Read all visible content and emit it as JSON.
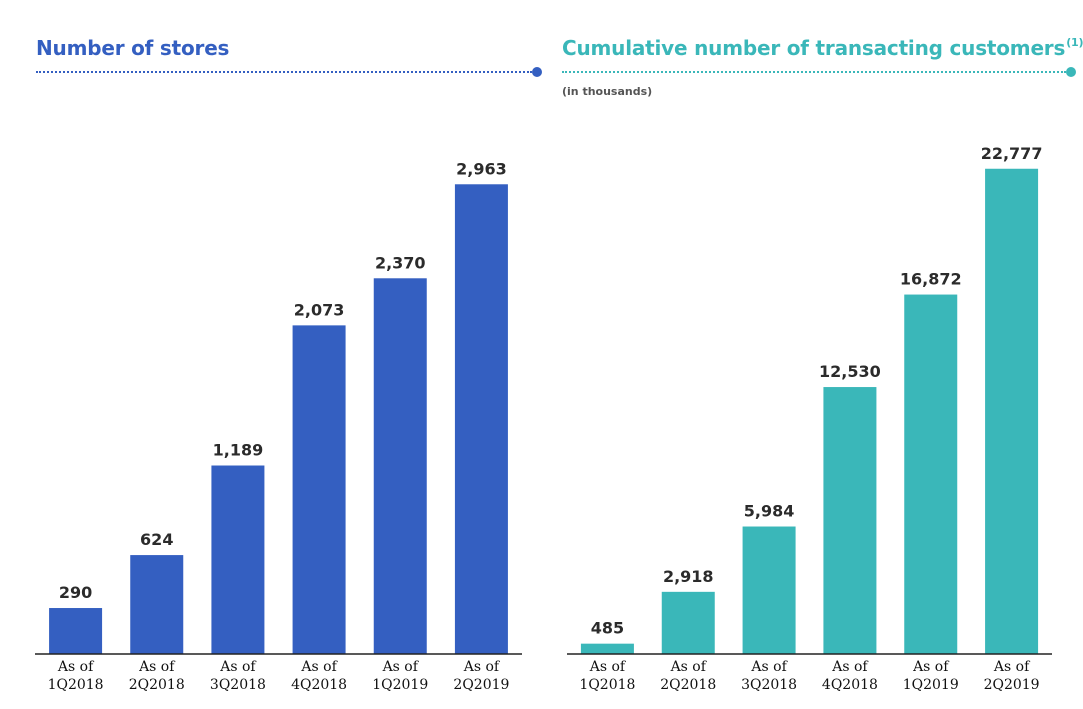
{
  "colors": {
    "stores_bar": "#345fc1",
    "customers_bar": "#3ab7b9",
    "axis": "#222222"
  },
  "chart_data": [
    {
      "type": "bar",
      "title": "Number of stores",
      "categories": [
        "As of\n1Q2018",
        "As of\n2Q2018",
        "As of\n3Q2018",
        "As of\n4Q2018",
        "As of\n1Q2019",
        "As of\n2Q2019"
      ],
      "values": [
        290,
        624,
        1189,
        2073,
        2370,
        2963
      ],
      "value_labels": [
        "290",
        "624",
        "1,189",
        "2,073",
        "2,370",
        "2,963"
      ],
      "ylim": [
        0,
        3400
      ],
      "grid": false,
      "color": "#345fc1"
    },
    {
      "type": "bar",
      "title": "Cumulative number of transacting customers",
      "title_superscript": "(1)",
      "subtitle": "(in thousands)",
      "categories": [
        "As of\n1Q2018",
        "As of\n2Q2018",
        "As of\n3Q2018",
        "As of\n4Q2018",
        "As of\n1Q2019",
        "As of\n2Q2019"
      ],
      "values": [
        485,
        2918,
        5984,
        12530,
        16872,
        22777
      ],
      "value_labels": [
        "485",
        "2,918",
        "5,984",
        "12,530",
        "16,872",
        "22,777"
      ],
      "ylim": [
        0,
        25300
      ],
      "grid": false,
      "color": "#3ab7b9"
    }
  ]
}
